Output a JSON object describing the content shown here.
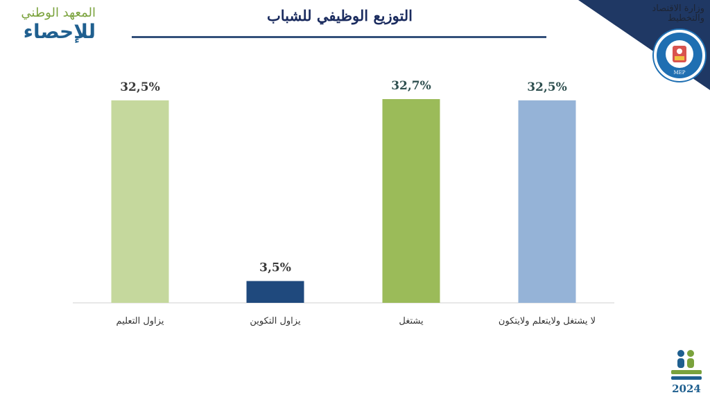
{
  "header": {
    "title": "التوزيع الوظيفي للشباب",
    "institute_line1": "المعهد الوطني",
    "institute_line2": "للإحصاء",
    "ministry_line1": "وزارة الاقتصاد",
    "ministry_line2": "والتخطيط",
    "seal_label": "MEP",
    "census_year": "2024"
  },
  "colors": {
    "title": "#1a2b5e",
    "bar1": "#c5d89d",
    "bar2": "#1f497d",
    "bar3": "#9bbb59",
    "bar4": "#95b3d7",
    "corner": "#1f3864"
  },
  "chart_data": {
    "type": "bar",
    "title": "التوزيع الوظيفي للشباب",
    "categories": [
      "يزاول التعليم",
      "يزاول التكوين",
      "يشتغل",
      "لا يشتغل ولايتعلم ولايتكون"
    ],
    "values": [
      32.5,
      3.5,
      32.7,
      32.5
    ],
    "data_labels": [
      "32,5%",
      "3,5%",
      "32,7%",
      "32,5%"
    ],
    "label_colors": [
      "#3a3a3a",
      "#3a3a3a",
      "#2e4f4f",
      "#2e4f4f"
    ],
    "ylim": [
      0,
      32.7
    ],
    "grid": false,
    "legend": "none"
  }
}
